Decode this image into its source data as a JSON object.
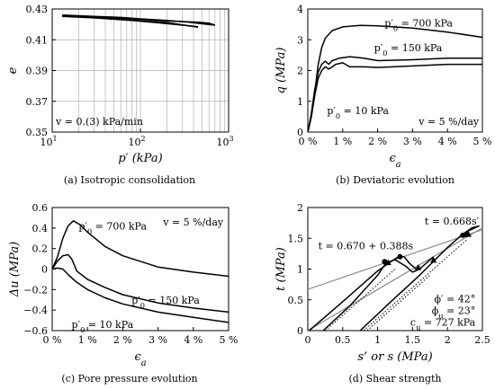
{
  "chart_data": [
    {
      "id": "a",
      "type": "line",
      "caption": "(a) Isotropic consolidation",
      "xlabel": "p′ (kPa)",
      "ylabel": "e",
      "xscale": "log",
      "xlim": [
        10,
        1000
      ],
      "ylim": [
        0.35,
        0.43
      ],
      "xticks": [
        {
          "v": 10,
          "base": "10",
          "exp": "1"
        },
        {
          "v": 100,
          "base": "10",
          "exp": "2"
        },
        {
          "v": 1000,
          "base": "10",
          "exp": "3"
        }
      ],
      "yticks": [
        {
          "v": 0.35,
          "label": "0.35"
        },
        {
          "v": 0.37,
          "label": "0.37"
        },
        {
          "v": 0.39,
          "label": "0.39"
        },
        {
          "v": 0.41,
          "label": "0.41"
        },
        {
          "v": 0.43,
          "label": "0.43"
        }
      ],
      "grid": "log-vertical",
      "annotations": [
        {
          "text": "v = 0.(3) kPa/min",
          "x": 11,
          "y": 0.357,
          "anchor": "start"
        }
      ],
      "series": [
        {
          "points": [
            [
              13,
              0.426
            ],
            [
              30,
              0.4252
            ],
            [
              60,
              0.4245
            ],
            [
              100,
              0.4236
            ],
            [
              200,
              0.4225
            ],
            [
              350,
              0.4215
            ],
            [
              480,
              0.4205
            ],
            [
              700,
              0.4195
            ]
          ]
        },
        {
          "points": [
            [
              700,
              0.4195
            ],
            [
              600,
              0.4208
            ],
            [
              450,
              0.4214
            ],
            [
              300,
              0.4218
            ],
            [
              200,
              0.4222
            ],
            [
              120,
              0.423
            ],
            [
              60,
              0.424
            ],
            [
              30,
              0.425
            ],
            [
              13,
              0.4256
            ]
          ]
        },
        {
          "points": [
            [
              13,
              0.4256
            ],
            [
              40,
              0.4238
            ],
            [
              80,
              0.4226
            ],
            [
              150,
              0.4212
            ],
            [
              300,
              0.4195
            ],
            [
              450,
              0.4185
            ]
          ]
        },
        {
          "points": [
            [
              13,
              0.4252
            ],
            [
              30,
              0.4242
            ],
            [
              80,
              0.4227
            ],
            [
              200,
              0.4212
            ],
            [
              450,
              0.4182
            ]
          ]
        }
      ]
    },
    {
      "id": "b",
      "type": "line",
      "caption": "(b) Deviatoric evolution",
      "xlabel": "ϵa",
      "ylabel": "q (MPa)",
      "xlim": [
        0,
        5
      ],
      "ylim": [
        0,
        4
      ],
      "xticks": [
        {
          "v": 0,
          "label": "0 %"
        },
        {
          "v": 1,
          "label": "1 %"
        },
        {
          "v": 2,
          "label": "2 %"
        },
        {
          "v": 3,
          "label": "3 %"
        },
        {
          "v": 4,
          "label": "4 %"
        },
        {
          "v": 5,
          "label": "5 %"
        }
      ],
      "yticks": [
        {
          "v": 0,
          "label": "0"
        },
        {
          "v": 1,
          "label": "1"
        },
        {
          "v": 2,
          "label": "2"
        },
        {
          "v": 3,
          "label": "3"
        },
        {
          "v": 4,
          "label": "4"
        }
      ],
      "annotations": [
        {
          "text": "p′0 = 700 kPa",
          "x": 2.2,
          "y": 3.55,
          "anchor": "start"
        },
        {
          "text": "p′0 = 150 kPa",
          "x": 1.9,
          "y": 2.75,
          "anchor": "start"
        },
        {
          "text": "p′0 = 10 kPa",
          "x": 0.55,
          "y": 0.7,
          "anchor": "start"
        },
        {
          "text": "v = 5 %/day",
          "x": 4.9,
          "y": 0.35,
          "anchor": "end"
        }
      ],
      "series": [
        {
          "points": [
            [
              0,
              0
            ],
            [
              0.1,
              0.5
            ],
            [
              0.2,
              1.3
            ],
            [
              0.3,
              2.2
            ],
            [
              0.4,
              2.75
            ],
            [
              0.5,
              3.05
            ],
            [
              0.7,
              3.3
            ],
            [
              1.0,
              3.42
            ],
            [
              1.5,
              3.47
            ],
            [
              2.0,
              3.45
            ],
            [
              3.0,
              3.38
            ],
            [
              4.0,
              3.25
            ],
            [
              5.0,
              3.08
            ]
          ]
        },
        {
          "points": [
            [
              0,
              0
            ],
            [
              0.1,
              0.6
            ],
            [
              0.2,
              1.4
            ],
            [
              0.3,
              1.95
            ],
            [
              0.4,
              2.2
            ],
            [
              0.5,
              2.3
            ],
            [
              0.6,
              2.2
            ],
            [
              0.7,
              2.32
            ],
            [
              0.9,
              2.4
            ],
            [
              1.2,
              2.45
            ],
            [
              1.6,
              2.4
            ],
            [
              2.0,
              2.32
            ],
            [
              3.0,
              2.35
            ],
            [
              4.0,
              2.4
            ],
            [
              5.0,
              2.4
            ]
          ]
        },
        {
          "points": [
            [
              0,
              0
            ],
            [
              0.1,
              0.5
            ],
            [
              0.2,
              1.2
            ],
            [
              0.3,
              1.75
            ],
            [
              0.4,
              2.0
            ],
            [
              0.5,
              2.12
            ],
            [
              0.6,
              2.05
            ],
            [
              0.7,
              2.12
            ],
            [
              0.8,
              2.2
            ],
            [
              1.0,
              2.25
            ],
            [
              1.2,
              2.12
            ],
            [
              1.6,
              2.12
            ],
            [
              2.0,
              2.1
            ],
            [
              3.0,
              2.15
            ],
            [
              4.0,
              2.2
            ],
            [
              5.0,
              2.2
            ]
          ]
        }
      ]
    },
    {
      "id": "c",
      "type": "line",
      "caption": "(c) Pore pressure evolution",
      "xlabel": "ϵa",
      "ylabel": "Δu (MPa)",
      "xlim": [
        0,
        5
      ],
      "ylim": [
        -0.6,
        0.6
      ],
      "xticks": [
        {
          "v": 0,
          "label": "0 %"
        },
        {
          "v": 1,
          "label": "1 %"
        },
        {
          "v": 2,
          "label": "2 %"
        },
        {
          "v": 3,
          "label": "3 %"
        },
        {
          "v": 4,
          "label": "4 %"
        },
        {
          "v": 5,
          "label": "5 %"
        }
      ],
      "yticks": [
        {
          "v": 0.6,
          "label": "0.6"
        },
        {
          "v": 0.4,
          "label": "0.4"
        },
        {
          "v": 0.2,
          "label": "0.2"
        },
        {
          "v": 0,
          "label": "0"
        },
        {
          "v": -0.2,
          "label": "−0.2"
        },
        {
          "v": -0.4,
          "label": "−0.4"
        },
        {
          "v": -0.6,
          "label": "−0.6"
        }
      ],
      "annotations": [
        {
          "text": "p′0 = 700 kPa",
          "x": 0.75,
          "y": 0.42,
          "anchor": "start"
        },
        {
          "text": "v = 5 %/day",
          "x": 4.85,
          "y": 0.46,
          "anchor": "end"
        },
        {
          "text": "p′0 = 150 kPa",
          "x": 2.25,
          "y": -0.3,
          "anchor": "start"
        },
        {
          "text": "p′0 = 10 kPa",
          "x": 0.55,
          "y": -0.54,
          "anchor": "start"
        }
      ],
      "series": [
        {
          "points": [
            [
              0,
              0
            ],
            [
              0.15,
              0.12
            ],
            [
              0.3,
              0.3
            ],
            [
              0.45,
              0.42
            ],
            [
              0.6,
              0.47
            ],
            [
              0.8,
              0.43
            ],
            [
              1.0,
              0.36
            ],
            [
              1.5,
              0.22
            ],
            [
              2.0,
              0.13
            ],
            [
              3.0,
              0.02
            ],
            [
              4.0,
              -0.03
            ],
            [
              5.0,
              -0.07
            ]
          ]
        },
        {
          "points": [
            [
              0,
              0
            ],
            [
              0.15,
              0.08
            ],
            [
              0.3,
              0.13
            ],
            [
              0.45,
              0.14
            ],
            [
              0.55,
              0.1
            ],
            [
              0.7,
              -0.02
            ],
            [
              1.0,
              -0.1
            ],
            [
              1.5,
              -0.18
            ],
            [
              2.0,
              -0.25
            ],
            [
              3.0,
              -0.33
            ],
            [
              4.0,
              -0.38
            ],
            [
              5.0,
              -0.42
            ]
          ]
        },
        {
          "points": [
            [
              0,
              0
            ],
            [
              0.15,
              0.01
            ],
            [
              0.3,
              0.0
            ],
            [
              0.5,
              -0.07
            ],
            [
              0.7,
              -0.13
            ],
            [
              1.0,
              -0.2
            ],
            [
              1.5,
              -0.28
            ],
            [
              2.0,
              -0.34
            ],
            [
              3.0,
              -0.42
            ],
            [
              4.0,
              -0.47
            ],
            [
              5.0,
              -0.52
            ]
          ]
        }
      ]
    },
    {
      "id": "d",
      "type": "line",
      "caption": "(d) Shear strength",
      "xlabel": "s’ or s (MPa)",
      "ylabel": "t (MPa)",
      "xlim": [
        0,
        2.5
      ],
      "ylim": [
        0,
        2
      ],
      "xticks": [
        {
          "v": 0,
          "label": "0"
        },
        {
          "v": 0.5,
          "label": "0.5"
        },
        {
          "v": 1,
          "label": "1"
        },
        {
          "v": 1.5,
          "label": "1.5"
        },
        {
          "v": 2,
          "label": "2"
        },
        {
          "v": 2.5,
          "label": "2.5"
        }
      ],
      "yticks": [
        {
          "v": 0,
          "label": "0"
        },
        {
          "v": 0.5,
          "label": "0.5"
        },
        {
          "v": 1,
          "label": "1"
        },
        {
          "v": 1.5,
          "label": "1.5"
        },
        {
          "v": 2,
          "label": "2"
        }
      ],
      "annotations": [
        {
          "text": "t = 0.668s′",
          "x": 2.45,
          "y": 1.78,
          "anchor": "end"
        },
        {
          "text": "t = 0.670 + 0.388s",
          "x": 0.15,
          "y": 1.38,
          "anchor": "start"
        },
        {
          "text": "ϕ′ = 42°",
          "x": 2.4,
          "y": 0.52,
          "anchor": "end"
        },
        {
          "text": "ϕu = 23°",
          "x": 2.4,
          "y": 0.33,
          "anchor": "end"
        },
        {
          "text": "cu = 727 kPa",
          "x": 2.4,
          "y": 0.14,
          "anchor": "end"
        }
      ],
      "reference_lines": [
        {
          "style": "solid-gray",
          "points": [
            [
              0,
              0
            ],
            [
              2.5,
              1.67
            ]
          ]
        },
        {
          "style": "solid-gray",
          "points": [
            [
              0,
              0.67
            ],
            [
              2.5,
              1.64
            ]
          ]
        },
        {
          "style": "dotted",
          "points": [
            [
              0.25,
              0
            ],
            [
              1.25,
              1.0
            ]
          ]
        },
        {
          "style": "dotted",
          "points": [
            [
              0.8,
              0
            ],
            [
              2.28,
              1.48
            ]
          ]
        },
        {
          "style": "dotted",
          "points": [
            [
              0.85,
              0
            ],
            [
              1.75,
              0.9
            ]
          ]
        }
      ],
      "series": [
        {
          "points": [
            [
              0.02,
              0
            ],
            [
              0.5,
              0.47
            ],
            [
              1.0,
              0.97
            ],
            [
              1.2,
              1.13
            ],
            [
              1.3,
              1.2
            ],
            [
              1.38,
              1.2
            ],
            [
              1.45,
              1.1
            ],
            [
              1.55,
              1.0
            ],
            [
              1.6,
              1.05
            ]
          ]
        },
        {
          "points": [
            [
              0.22,
              0
            ],
            [
              0.6,
              0.4
            ],
            [
              1.0,
              0.9
            ],
            [
              1.12,
              1.1
            ],
            [
              1.25,
              1.15
            ],
            [
              1.4,
              1.05
            ],
            [
              1.5,
              0.95
            ],
            [
              1.6,
              1.0
            ],
            [
              1.8,
              1.2
            ]
          ]
        },
        {
          "points": [
            [
              0.75,
              0
            ],
            [
              1.2,
              0.48
            ],
            [
              1.6,
              0.9
            ],
            [
              2.0,
              1.35
            ],
            [
              2.2,
              1.55
            ],
            [
              2.35,
              1.67
            ],
            [
              2.45,
              1.7
            ],
            [
              2.3,
              1.62
            ],
            [
              2.2,
              1.55
            ]
          ]
        }
      ],
      "markers": [
        {
          "shape": "circle",
          "x": 1.1,
          "y": 1.12
        },
        {
          "shape": "circle",
          "x": 1.32,
          "y": 1.2
        },
        {
          "shape": "circle",
          "x": 2.22,
          "y": 1.55
        },
        {
          "shape": "circle",
          "x": 2.27,
          "y": 1.56
        },
        {
          "shape": "triangle",
          "x": 1.15,
          "y": 1.1
        },
        {
          "shape": "triangle",
          "x": 1.58,
          "y": 1.02
        },
        {
          "shape": "triangle",
          "x": 1.8,
          "y": 1.14
        },
        {
          "shape": "triangle",
          "x": 2.3,
          "y": 1.56
        }
      ]
    }
  ]
}
